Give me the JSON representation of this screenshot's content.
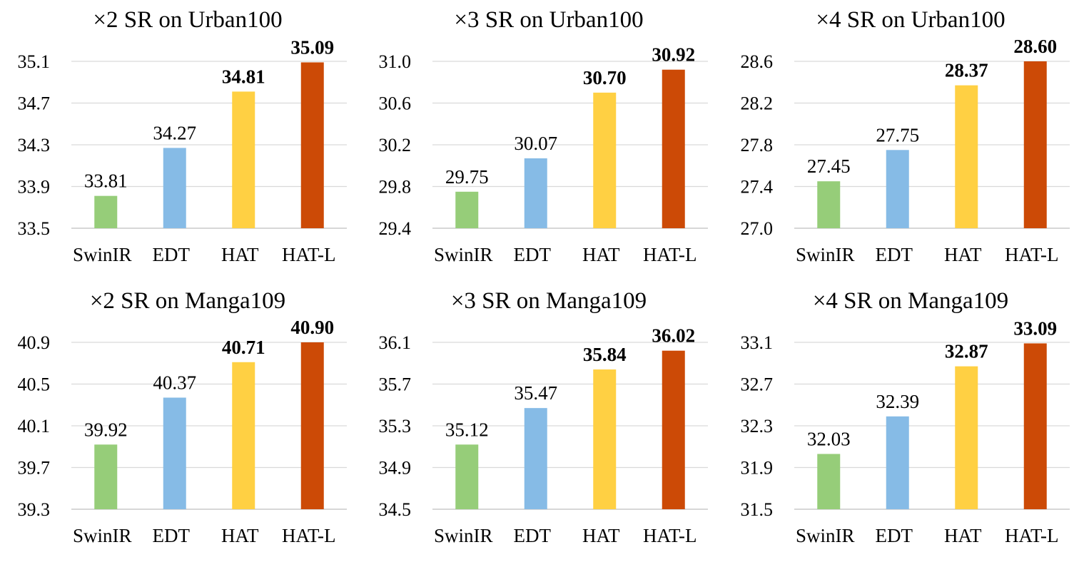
{
  "chart_data": [
    {
      "type": "bar",
      "title": "×2 SR on Urban100",
      "categories": [
        "SwinIR",
        "EDT",
        "HAT",
        "HAT-L"
      ],
      "values": [
        33.81,
        34.27,
        34.81,
        35.09
      ],
      "value_labels": [
        "33.81",
        "34.27",
        "34.81",
        "35.09"
      ],
      "bold_values": [
        false,
        false,
        true,
        true
      ],
      "yticks": [
        "33.5",
        "33.9",
        "34.3",
        "34.7",
        "35.1"
      ],
      "ylim": [
        33.5,
        35.1
      ],
      "colors": [
        "#96cd79",
        "#86bbe6",
        "#ffd043",
        "#cc4a06"
      ],
      "grid": true
    },
    {
      "type": "bar",
      "title": "×3 SR on Urban100",
      "categories": [
        "SwinIR",
        "EDT",
        "HAT",
        "HAT-L"
      ],
      "values": [
        29.75,
        30.07,
        30.7,
        30.92
      ],
      "value_labels": [
        "29.75",
        "30.07",
        "30.70",
        "30.92"
      ],
      "bold_values": [
        false,
        false,
        true,
        true
      ],
      "yticks": [
        "29.4",
        "29.8",
        "30.2",
        "30.6",
        "31.0"
      ],
      "ylim": [
        29.4,
        31.0
      ],
      "colors": [
        "#96cd79",
        "#86bbe6",
        "#ffd043",
        "#cc4a06"
      ],
      "grid": true
    },
    {
      "type": "bar",
      "title": "×4 SR on Urban100",
      "categories": [
        "SwinIR",
        "EDT",
        "HAT",
        "HAT-L"
      ],
      "values": [
        27.45,
        27.75,
        28.37,
        28.6
      ],
      "value_labels": [
        "27.45",
        "27.75",
        "28.37",
        "28.60"
      ],
      "bold_values": [
        false,
        false,
        true,
        true
      ],
      "yticks": [
        "27.0",
        "27.4",
        "27.8",
        "28.2",
        "28.6"
      ],
      "ylim": [
        27.0,
        28.6
      ],
      "colors": [
        "#96cd79",
        "#86bbe6",
        "#ffd043",
        "#cc4a06"
      ],
      "grid": true
    },
    {
      "type": "bar",
      "title": "×2 SR on Manga109",
      "categories": [
        "SwinIR",
        "EDT",
        "HAT",
        "HAT-L"
      ],
      "values": [
        39.92,
        40.37,
        40.71,
        40.9
      ],
      "value_labels": [
        "39.92",
        "40.37",
        "40.71",
        "40.90"
      ],
      "bold_values": [
        false,
        false,
        true,
        true
      ],
      "yticks": [
        "39.3",
        "39.7",
        "40.1",
        "40.5",
        "40.9"
      ],
      "ylim": [
        39.3,
        40.9
      ],
      "colors": [
        "#96cd79",
        "#86bbe6",
        "#ffd043",
        "#cc4a06"
      ],
      "grid": true
    },
    {
      "type": "bar",
      "title": "×3 SR on Manga109",
      "categories": [
        "SwinIR",
        "EDT",
        "HAT",
        "HAT-L"
      ],
      "values": [
        35.12,
        35.47,
        35.84,
        36.02
      ],
      "value_labels": [
        "35.12",
        "35.47",
        "35.84",
        "36.02"
      ],
      "bold_values": [
        false,
        false,
        true,
        true
      ],
      "yticks": [
        "34.5",
        "34.9",
        "35.3",
        "35.7",
        "36.1"
      ],
      "ylim": [
        34.5,
        36.1
      ],
      "colors": [
        "#96cd79",
        "#86bbe6",
        "#ffd043",
        "#cc4a06"
      ],
      "grid": true
    },
    {
      "type": "bar",
      "title": "×4 SR on Manga109",
      "categories": [
        "SwinIR",
        "EDT",
        "HAT",
        "HAT-L"
      ],
      "values": [
        32.03,
        32.39,
        32.87,
        33.09
      ],
      "value_labels": [
        "32.03",
        "32.39",
        "32.87",
        "33.09"
      ],
      "bold_values": [
        false,
        false,
        true,
        true
      ],
      "yticks": [
        "31.5",
        "31.9",
        "32.3",
        "32.7",
        "33.1"
      ],
      "ylim": [
        31.5,
        33.1
      ],
      "colors": [
        "#96cd79",
        "#86bbe6",
        "#ffd043",
        "#cc4a06"
      ],
      "grid": true
    }
  ]
}
